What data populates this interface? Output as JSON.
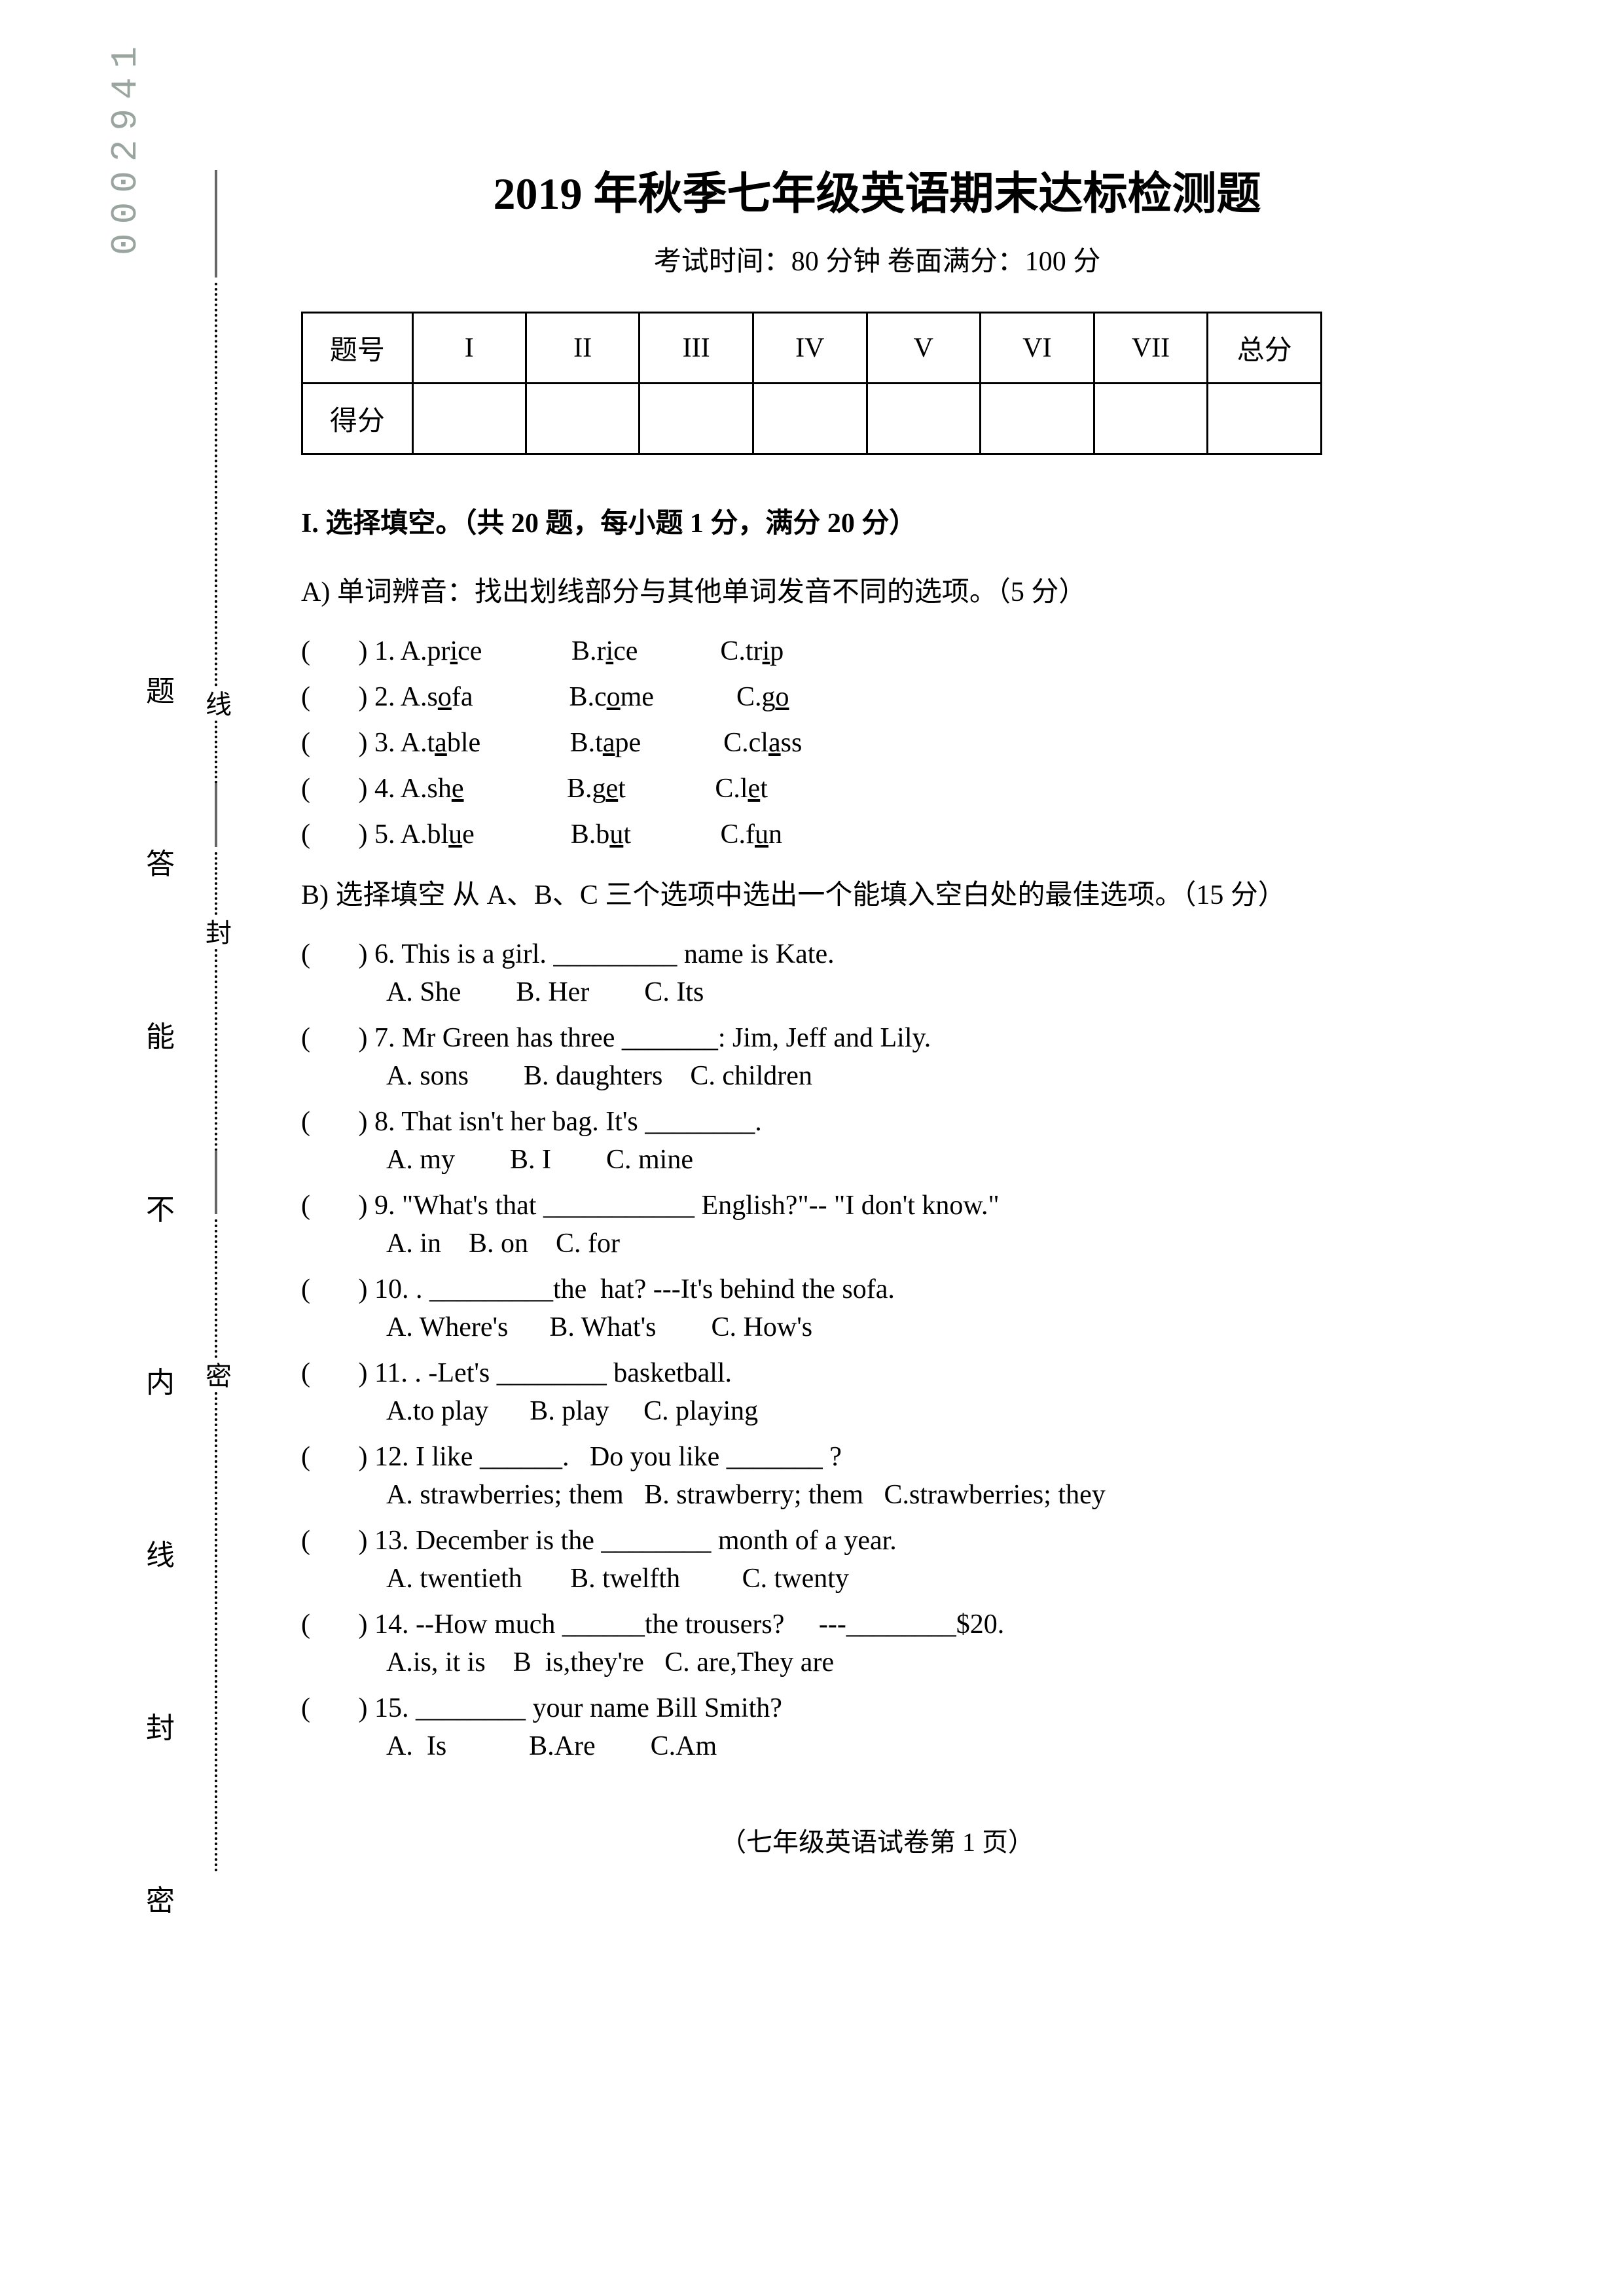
{
  "serial_number": "0002941",
  "title": "2019 年秋季七年级英语期末达标检测题",
  "subtitle": "考试时间：80 分钟   卷面满分：100 分",
  "score_table": {
    "row1": [
      "题号",
      "I",
      "II",
      "III",
      "IV",
      "V",
      "VI",
      "VII",
      "总分"
    ],
    "row2_label": "得分"
  },
  "section1_head": "I.  选择填空。（共 20 题，每小题 1 分，满分 20 分）",
  "partA_head": "A) 单词辨音：找出划线部分与其他单词发音不同的选项。（5 分）",
  "pron_items": [
    {
      "n": "1",
      "a_pre": "A.pr",
      "a_u": "i",
      "a_post": "ce",
      "b_pre": "B.r",
      "b_u": "i",
      "b_post": "ce",
      "c_pre": "C.tr",
      "c_u": "i",
      "c_post": "p"
    },
    {
      "n": "2",
      "a_pre": "A.s",
      "a_u": "o",
      "a_post": "fa",
      "b_pre": "B.c",
      "b_u": "o",
      "b_post": "me",
      "c_pre": "C.g",
      "c_u": "o",
      "c_post": ""
    },
    {
      "n": "3",
      "a_pre": "A.t",
      "a_u": "a",
      "a_post": "ble",
      "b_pre": "B.t",
      "b_u": "a",
      "b_post": "pe",
      "c_pre": "C.cl",
      "c_u": "a",
      "c_post": "ss"
    },
    {
      "n": "4",
      "a_pre": "A.sh",
      "a_u": "e",
      "a_post": "",
      "b_pre": "B.g",
      "b_u": "e",
      "b_post": "t",
      "c_pre": "C.l",
      "c_u": "e",
      "c_post": "t"
    },
    {
      "n": "5",
      "a_pre": "A.bl",
      "a_u": "u",
      "a_post": "e",
      "b_pre": "B.b",
      "b_u": "u",
      "b_post": "t",
      "c_pre": "C.f",
      "c_u": "u",
      "c_post": "n"
    }
  ],
  "partB_head": "B) 选择填空 从 A、B、C 三个选项中选出一个能填入空白处的最佳选项。（15 分）",
  "mc_items": [
    {
      "n": "6",
      "stem": "This is a girl. _________ name is Kate.",
      "opts": "A. She        B. Her        C. Its"
    },
    {
      "n": "7",
      "stem": "Mr Green has three _______: Jim, Jeff and Lily.",
      "opts": "A. sons        B. daughters    C. children"
    },
    {
      "n": "8",
      "stem": "That isn't her bag. It's ________.",
      "opts": "A. my        B. I        C. mine"
    },
    {
      "n": "9",
      "stem": "\"What's that ___________ English?\"-- \"I don't know.\"",
      "opts": "A. in    B. on    C. for"
    },
    {
      "n": "10",
      "stem": ". _________the  hat? ---It's behind the sofa.",
      "opts": "A. Where's      B. What's        C. How's"
    },
    {
      "n": "11",
      "stem": ". -Let's ________ basketball.",
      "opts": "A.to play      B. play     C. playing"
    },
    {
      "n": "12",
      "stem": "I like ______.   Do you like _______ ?",
      "opts": "A. strawberries; them   B. strawberry; them   C.strawberries; they"
    },
    {
      "n": "13",
      "stem": "December is the ________ month of a year.",
      "opts": "A. twentieth       B. twelfth         C. twenty"
    },
    {
      "n": "14",
      "stem": "--How much ______the trousers?     ---________$20.",
      "opts": "A.is, it is    B  is,they're   C. are,They are"
    },
    {
      "n": "15",
      "stem": "________ your name Bill Smith?",
      "opts": "A.  Is            B.Are        C.Am"
    }
  ],
  "footer": "（七年级英语试卷第 1 页）",
  "side_labels": [
    "题",
    "答",
    "能",
    "不",
    "内",
    "线",
    "封",
    "密"
  ],
  "seal_chars": [
    "线",
    "封",
    "密"
  ]
}
